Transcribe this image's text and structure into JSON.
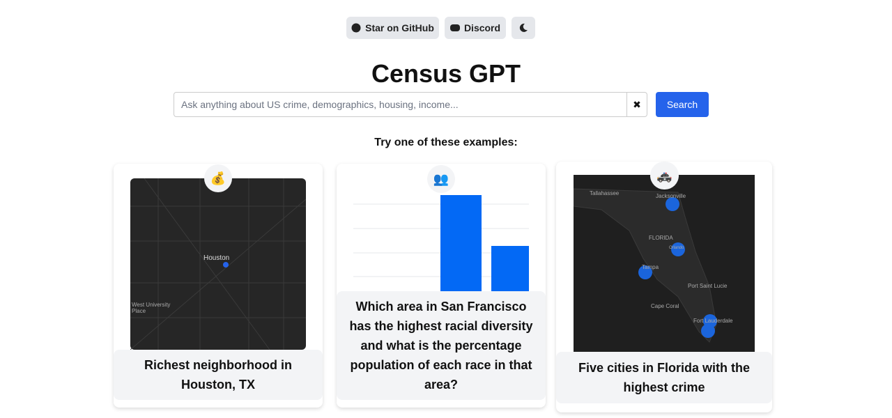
{
  "header": {
    "buttons": [
      "Star on GitHub",
      "Discord"
    ],
    "title": "Census GPT"
  },
  "search": {
    "placeholder": "Ask anything about US crime, demographics, housing, income...",
    "clear": "✖",
    "button": "Search"
  },
  "examples": {
    "heading": "Try one of these examples:",
    "cards": [
      {
        "icon": "💰",
        "text": "Richest neighborhood in Houston, TX",
        "map_labels": [
          "Houston",
          "West University Place"
        ]
      },
      {
        "icon": "👥",
        "text": "Which area in San Francisco has the highest racial diversity and what is the percentage population of each race in that area?"
      },
      {
        "icon": "🚓",
        "text": "Five cities in Florida with the highest crime",
        "map_labels": [
          "Tallahassee",
          "Jacksonville",
          "FLORIDA",
          "Orlando",
          "Tampa",
          "Port Saint Lucie",
          "Cape Coral",
          "Fort Lauderdale"
        ]
      }
    ]
  }
}
